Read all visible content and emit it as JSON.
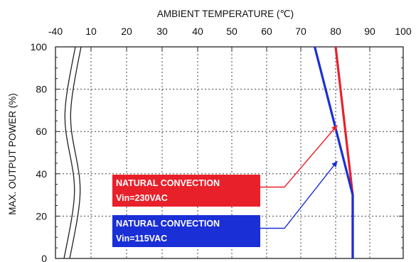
{
  "chart_data": {
    "type": "line",
    "title": "",
    "xlabel": "AMBIENT TEMPERATURE (℃)",
    "ylabel": "MAX. OUTPUT POWER (%)",
    "x_ticks": [
      "-40",
      "10",
      "20",
      "30",
      "40",
      "50",
      "60",
      "70",
      "80",
      "90",
      "100"
    ],
    "x_tick_values": [
      -40,
      10,
      20,
      30,
      40,
      50,
      60,
      70,
      80,
      90,
      100
    ],
    "xlim": [
      -40,
      100
    ],
    "x_axis_break": [
      -40,
      10
    ],
    "y_ticks": [
      "0",
      "20",
      "40",
      "60",
      "80",
      "100"
    ],
    "ylim": [
      0,
      100
    ],
    "grid": true,
    "legend_placement": "bottom-left",
    "series": [
      {
        "name": "NATURAL CONVECTION Vin=230VAC",
        "color": "#e8202a",
        "x": [
          -40,
          80,
          85,
          85
        ],
        "y": [
          100,
          100,
          30,
          0
        ]
      },
      {
        "name": "NATURAL CONVECTION Vin=115VAC",
        "color": "#1a2fd6",
        "x": [
          -40,
          74,
          85,
          85
        ],
        "y": [
          100,
          100,
          30,
          0
        ]
      }
    ],
    "legend": [
      {
        "line1": "NATURAL CONVECTION",
        "line2": "Vin=230VAC",
        "color": "#e8202a",
        "arrow_to": {
          "x": 80.5,
          "y": 63
        }
      },
      {
        "line1": "NATURAL CONVECTION",
        "line2": "Vin=115VAC",
        "color": "#1a2fd6",
        "arrow_to": {
          "x": 80.5,
          "y": 46
        }
      }
    ]
  }
}
